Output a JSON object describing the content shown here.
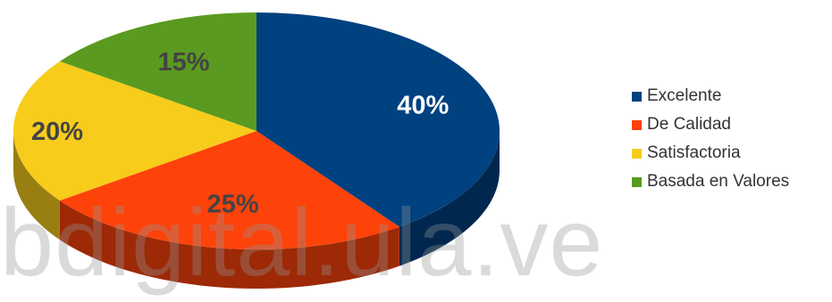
{
  "chart_data": {
    "type": "pie",
    "categories": [
      "Excelente",
      "De Calidad",
      "Satisfactoria",
      "Basada en Valores"
    ],
    "values": [
      40,
      25,
      20,
      15
    ],
    "data_labels": [
      "40%",
      "25%",
      "20%",
      "15%"
    ],
    "colors": [
      "#00417F",
      "#FD420A",
      "#F7CC1B",
      "#5A9A20"
    ],
    "label_colors": [
      "#ffffff",
      "#444444",
      "#444444",
      "#444444"
    ],
    "legend_position": "right",
    "style": "3d-perspective"
  },
  "watermark": "bdigital.ula.ve"
}
